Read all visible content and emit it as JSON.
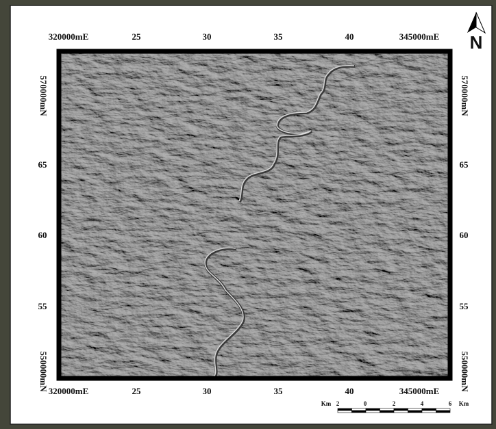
{
  "grid_labels": {
    "top": [
      "320000mE",
      "25",
      "30",
      "35",
      "40",
      "345000mE"
    ],
    "bottom": [
      "320000mE",
      "25",
      "30",
      "35",
      "40",
      "345000mE"
    ],
    "left": [
      "570000mN",
      "65",
      "60",
      "55",
      "550000mN"
    ],
    "right": [
      "570000mN",
      "65",
      "60",
      "55",
      "550000mN"
    ]
  },
  "north": "N",
  "scale_bar": {
    "unit": "Km",
    "labels": [
      "2",
      "0",
      "2",
      "4",
      "6"
    ]
  }
}
